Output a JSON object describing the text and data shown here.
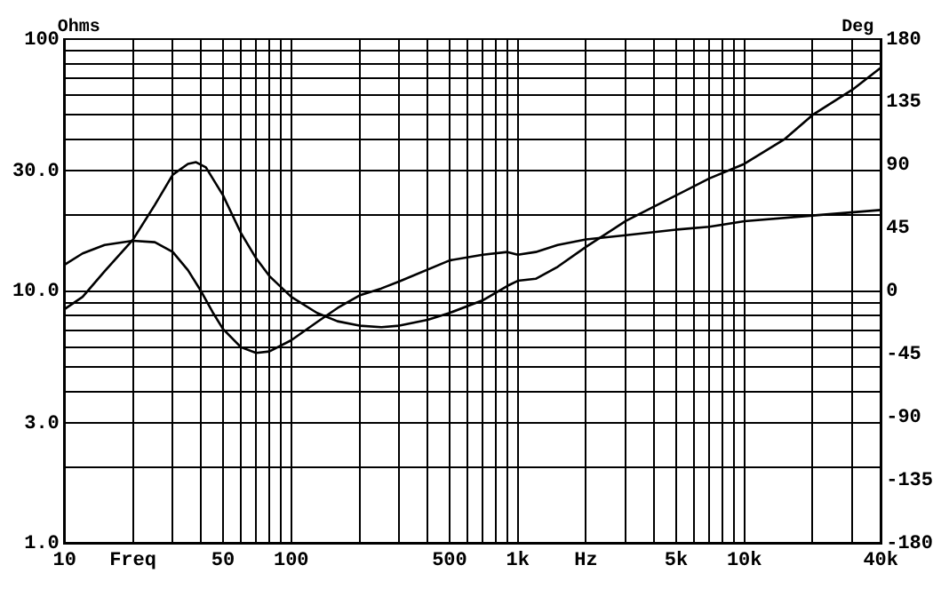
{
  "chart_data": {
    "type": "line",
    "ylabel": "Ohms",
    "y2label": "Deg",
    "series": [
      {
        "color": "#000000",
        "x": [
          10,
          12,
          15,
          20,
          25,
          30,
          35,
          38,
          42,
          50,
          60,
          70,
          80,
          100,
          130,
          160,
          200,
          250,
          300,
          400,
          500,
          700,
          900,
          1000,
          1200,
          1500,
          2000,
          3000,
          5000,
          7000,
          10000,
          15000,
          20000,
          30000,
          40000
        ],
        "values": [
          8.5,
          9.5,
          12,
          16,
          22,
          29,
          32,
          32.5,
          31,
          24,
          17,
          13.5,
          11.5,
          9.5,
          8.2,
          7.6,
          7.3,
          7.2,
          7.3,
          7.7,
          8.2,
          9.2,
          10.5,
          11,
          11.2,
          12.5,
          15,
          19,
          24,
          28,
          32,
          40,
          50,
          63,
          77
        ]
      },
      {
        "color": "#000000",
        "axis": "y2",
        "x": [
          10,
          12,
          15,
          20,
          25,
          30,
          35,
          40,
          45,
          50,
          60,
          70,
          80,
          100,
          130,
          160,
          200,
          250,
          300,
          500,
          700,
          900,
          1000,
          1200,
          1500,
          2000,
          3000,
          5000,
          7000,
          10000,
          20000,
          40000
        ],
        "values": [
          19,
          27,
          33,
          36,
          35,
          28,
          15,
          0,
          -15,
          -27,
          -40,
          -44,
          -43,
          -35,
          -22,
          -12,
          -3,
          2,
          7,
          22,
          26,
          28,
          26,
          28,
          33,
          37,
          40,
          44,
          46,
          50,
          54,
          58
        ]
      }
    ],
    "xlim": [
      10,
      40000
    ],
    "ylim": [
      1,
      100
    ],
    "y2lim": [
      -180,
      180
    ],
    "xticks": [
      10,
      {
        "value": 20,
        "label": "Freq"
      },
      {
        "value": 30,
        "label": null
      },
      {
        "value": 40,
        "label": null
      },
      50,
      {
        "value": 60,
        "label": null
      },
      {
        "value": 70,
        "label": null
      },
      {
        "value": 80,
        "label": null
      },
      {
        "value": 90,
        "label": null
      },
      100,
      {
        "value": 200,
        "label": null
      },
      {
        "value": 300,
        "label": null
      },
      {
        "value": 400,
        "label": null
      },
      500,
      {
        "value": 600,
        "label": null
      },
      {
        "value": 700,
        "label": null
      },
      {
        "value": 800,
        "label": null
      },
      {
        "value": 900,
        "label": null
      },
      {
        "value": 1000,
        "label": "1k"
      },
      {
        "value": 2000,
        "label": "Hz"
      },
      {
        "value": 3000,
        "label": null
      },
      {
        "value": 4000,
        "label": null
      },
      {
        "value": 5000,
        "label": "5k"
      },
      {
        "value": 6000,
        "label": null
      },
      {
        "value": 7000,
        "label": null
      },
      {
        "value": 8000,
        "label": null
      },
      {
        "value": 9000,
        "label": null
      },
      {
        "value": 10000,
        "label": "10k"
      },
      {
        "value": 20000,
        "label": null
      },
      {
        "value": 30000,
        "label": null
      },
      {
        "value": 40000,
        "label": "40k"
      }
    ],
    "yticks": [
      {
        "value": 1,
        "label": "1.0"
      },
      {
        "value": 2,
        "label": null
      },
      {
        "value": 3,
        "label": "3.0"
      },
      {
        "value": 4,
        "label": null
      },
      {
        "value": 5,
        "label": null
      },
      {
        "value": 6,
        "label": null
      },
      {
        "value": 7,
        "label": null
      },
      {
        "value": 8,
        "label": null
      },
      {
        "value": 9,
        "label": null
      },
      {
        "value": 10,
        "label": "10.0"
      },
      {
        "value": 20,
        "label": null
      },
      {
        "value": 30,
        "label": "30.0"
      },
      {
        "value": 40,
        "label": null
      },
      {
        "value": 50,
        "label": null
      },
      {
        "value": 60,
        "label": null
      },
      {
        "value": 70,
        "label": null
      },
      {
        "value": 80,
        "label": null
      },
      {
        "value": 90,
        "label": null
      },
      100
    ],
    "y2ticks": [
      -180,
      -135,
      -90,
      -45,
      0,
      45,
      90,
      135,
      180
    ],
    "log": "xy",
    "grid": true,
    "legend": false,
    "marker": "none",
    "line_style": "solid"
  }
}
